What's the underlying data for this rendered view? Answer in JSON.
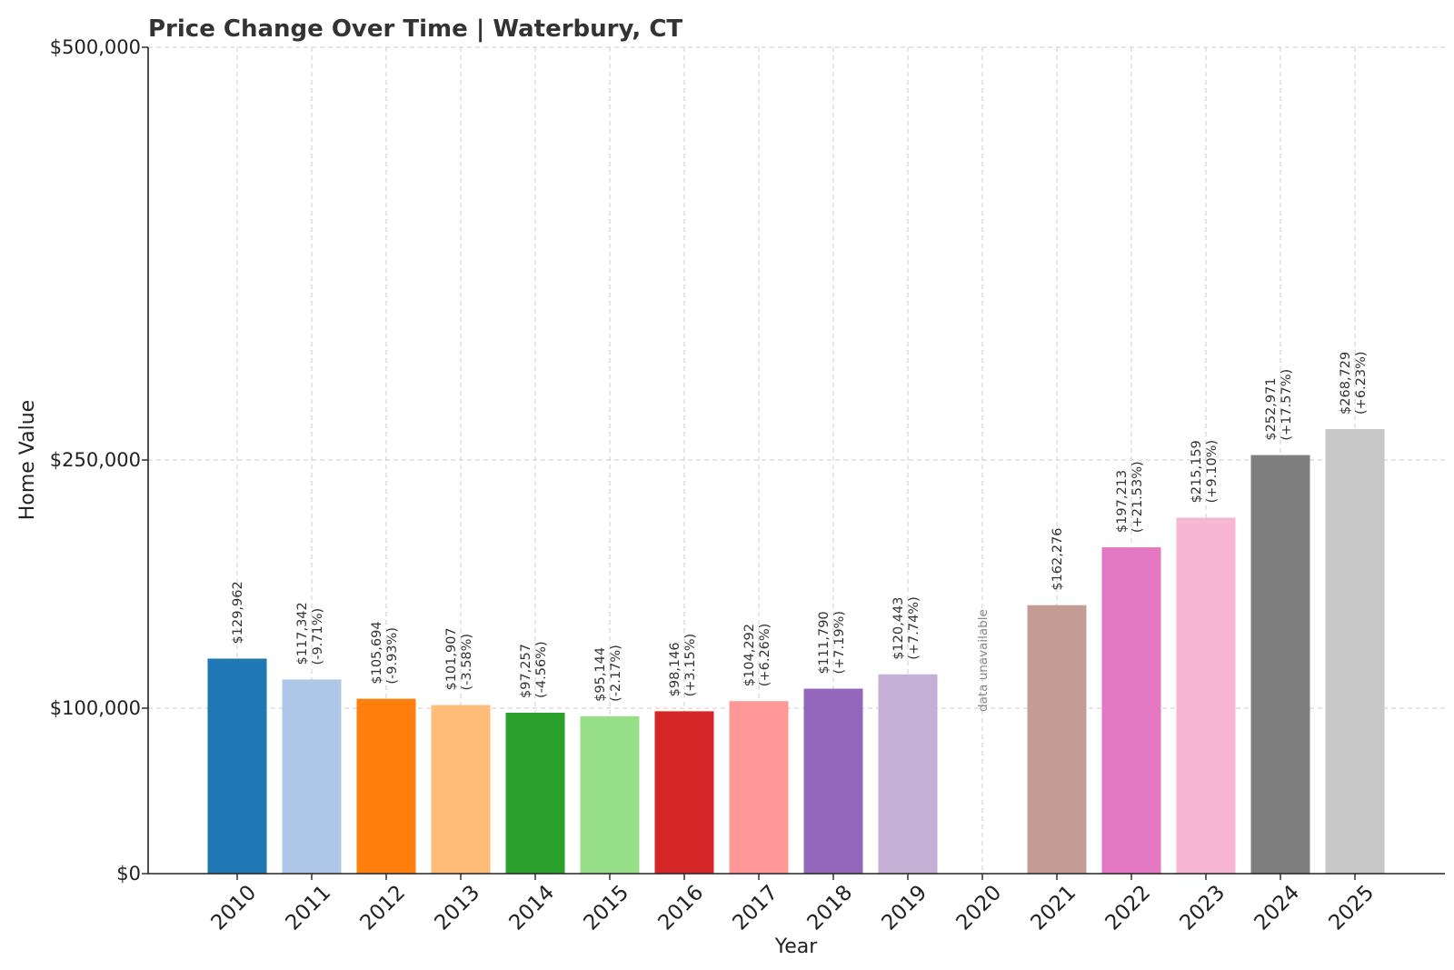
{
  "chart_data": {
    "type": "bar",
    "title": "Price Change Over Time | Waterbury, CT",
    "xlabel": "Year",
    "ylabel": "Home Value",
    "ylim": [
      0,
      500000
    ],
    "yticks": [
      0,
      100000,
      250000,
      500000
    ],
    "ytick_labels": [
      "$0",
      "$100,000",
      "$250,000",
      "$500,000"
    ],
    "grid": true,
    "categories": [
      "2010",
      "2011",
      "2012",
      "2013",
      "2014",
      "2015",
      "2016",
      "2017",
      "2018",
      "2019",
      "2020",
      "2021",
      "2022",
      "2023",
      "2024",
      "2025"
    ],
    "values": [
      129962,
      117342,
      105694,
      101907,
      97257,
      95144,
      98146,
      104292,
      111790,
      120443,
      null,
      162276,
      197213,
      215159,
      252971,
      268729
    ],
    "value_labels": [
      "$129,962",
      "$117,342",
      "$105,694",
      "$101,907",
      "$97,257",
      "$95,144",
      "$98,146",
      "$104,292",
      "$111,790",
      "$120,443",
      "",
      "$162,276",
      "$197,213",
      "$215,159",
      "$252,971",
      "$268,729"
    ],
    "change_labels": [
      "",
      "(-9.71%)",
      "(-9.93%)",
      "(-3.58%)",
      "(-4.56%)",
      "(-2.17%)",
      "(+3.15%)",
      "(+6.26%)",
      "(+7.19%)",
      "(+7.74%)",
      "",
      "",
      "(+21.53%)",
      "(+9.10%)",
      "(+17.57%)",
      "(+6.23%)"
    ],
    "missing_label": "data unavailable",
    "colors": [
      "#1f77b4",
      "#aec7e8",
      "#ff7f0e",
      "#ffbb78",
      "#2ca02c",
      "#98df8a",
      "#d62728",
      "#ff9896",
      "#9467bd",
      "#c5b0d5",
      "#8c564b",
      "#c49c94",
      "#e377c2",
      "#f7b6d2",
      "#7f7f7f",
      "#c7c7c7"
    ]
  }
}
